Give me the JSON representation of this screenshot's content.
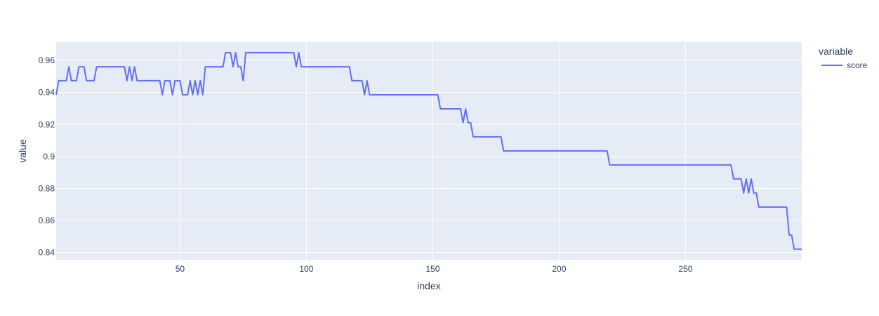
{
  "chart_data": {
    "type": "line",
    "xlabel": "index",
    "ylabel": "value",
    "xlim": [
      1,
      296
    ],
    "ylim": [
      0.8354,
      0.9715
    ],
    "x_ticks": [
      50,
      100,
      150,
      200,
      250
    ],
    "y_ticks": [
      0.84,
      0.86,
      0.88,
      0.9,
      0.92,
      0.94,
      0.96
    ],
    "y_tick_labels": [
      "0.84",
      "0.86",
      "0.88",
      "0.9",
      "0.92",
      "0.94",
      "0.96"
    ],
    "grid": true,
    "legend": {
      "title": "variable",
      "placement": "top-right"
    },
    "colors": {
      "plot_background": "#e5ecf6",
      "grid": "#ffffff",
      "series": "#636efa",
      "text": "#2a3f5f"
    },
    "series": [
      {
        "name": "score",
        "x": [
          1,
          2,
          3,
          4,
          5,
          6,
          7,
          8,
          9,
          10,
          11,
          12,
          13,
          14,
          15,
          16,
          17,
          18,
          19,
          20,
          21,
          22,
          23,
          24,
          25,
          26,
          27,
          28,
          29,
          30,
          31,
          32,
          33,
          34,
          35,
          36,
          37,
          38,
          39,
          40,
          41,
          42,
          43,
          44,
          45,
          46,
          47,
          48,
          49,
          50,
          51,
          52,
          53,
          54,
          55,
          56,
          57,
          58,
          59,
          60,
          61,
          67,
          68,
          69,
          70,
          71,
          72,
          73,
          74,
          75,
          76,
          77,
          95,
          96,
          97,
          98,
          117,
          118,
          122,
          123,
          124,
          125,
          126,
          152,
          153,
          154,
          161,
          162,
          163,
          164,
          165,
          166,
          176,
          177,
          178,
          219,
          220,
          268,
          269,
          272,
          273,
          274,
          275,
          276,
          277,
          278,
          279,
          290,
          291,
          292,
          293,
          294,
          296
        ],
        "y": [
          0.9386,
          0.9474,
          0.9474,
          0.9474,
          0.9474,
          0.9561,
          0.9474,
          0.9474,
          0.9474,
          0.9561,
          0.9561,
          0.9561,
          0.9474,
          0.9474,
          0.9474,
          0.9474,
          0.9561,
          0.9561,
          0.9561,
          0.9561,
          0.9561,
          0.9561,
          0.9561,
          0.9561,
          0.9561,
          0.9561,
          0.9561,
          0.9561,
          0.9474,
          0.9561,
          0.9474,
          0.9561,
          0.9474,
          0.9474,
          0.9474,
          0.9474,
          0.9474,
          0.9474,
          0.9474,
          0.9474,
          0.9474,
          0.9474,
          0.9386,
          0.9474,
          0.9474,
          0.9474,
          0.9386,
          0.9474,
          0.9474,
          0.9474,
          0.9386,
          0.9386,
          0.9386,
          0.9474,
          0.9386,
          0.9474,
          0.9386,
          0.9474,
          0.9386,
          0.9561,
          0.9561,
          0.9561,
          0.9649,
          0.9649,
          0.9649,
          0.9561,
          0.9649,
          0.9561,
          0.9561,
          0.9474,
          0.9649,
          0.9649,
          0.9649,
          0.9561,
          0.9649,
          0.9561,
          0.9561,
          0.9474,
          0.9474,
          0.9386,
          0.9474,
          0.9386,
          0.9386,
          0.9386,
          0.9298,
          0.9298,
          0.9298,
          0.9211,
          0.9298,
          0.9211,
          0.9211,
          0.9123,
          0.9123,
          0.9123,
          0.9035,
          0.9035,
          0.8947,
          0.8947,
          0.886,
          0.886,
          0.8772,
          0.886,
          0.8772,
          0.886,
          0.8772,
          0.8772,
          0.8684,
          0.8684,
          0.8509,
          0.8509,
          0.8421,
          0.8421,
          0.8421
        ]
      }
    ]
  }
}
